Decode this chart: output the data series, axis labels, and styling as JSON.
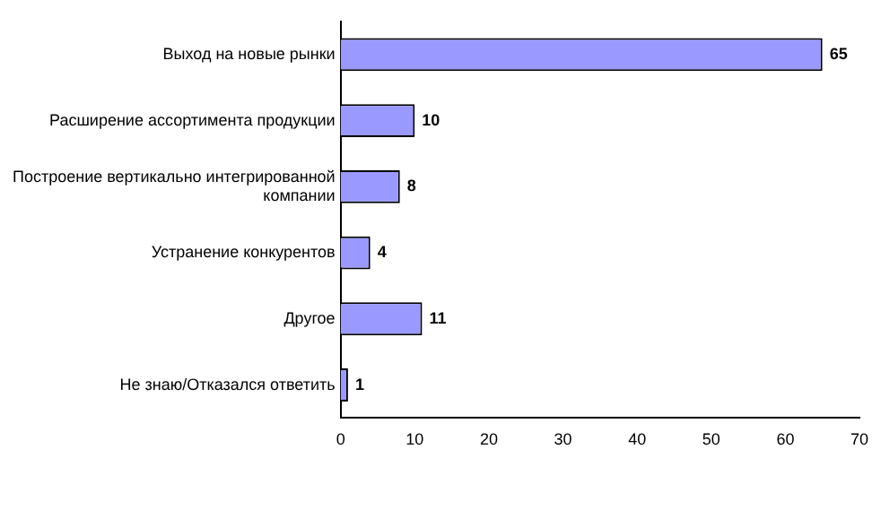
{
  "chart_data": {
    "type": "bar",
    "orientation": "horizontal",
    "categories": [
      "Выход на новые рынки",
      "Расширение ассортимента продукции",
      "Построение вертикально интегрированной компании",
      "Устранение конкурентов",
      "Другое",
      "Не знаю/Отказался ответить"
    ],
    "values": [
      65,
      10,
      8,
      4,
      11,
      1
    ],
    "color": "#9999ff",
    "xlim": [
      0,
      70
    ],
    "xticks": [
      0,
      10,
      20,
      30,
      40,
      50,
      60,
      70
    ],
    "grid": false,
    "legend": false,
    "data_labels": true
  }
}
